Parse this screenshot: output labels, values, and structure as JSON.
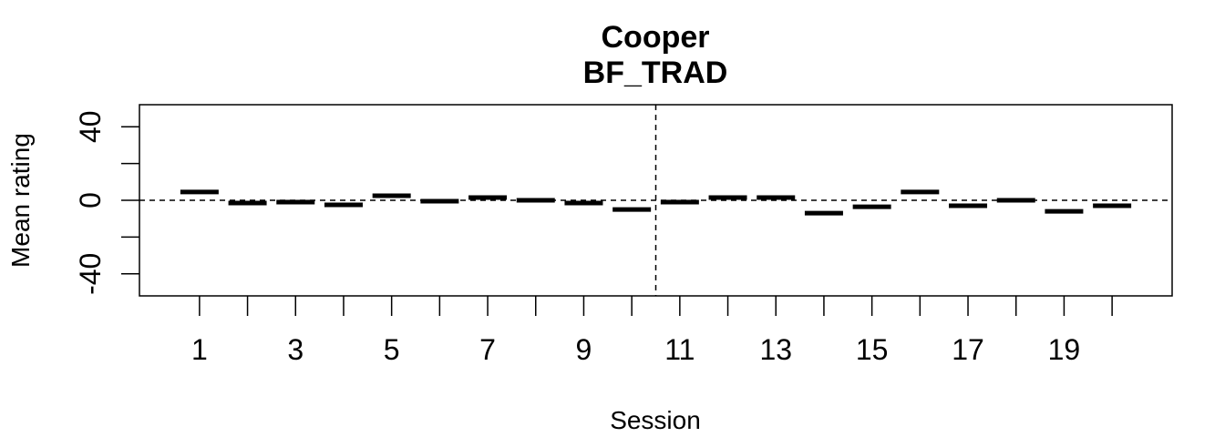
{
  "chart_data": {
    "type": "bar",
    "title": "Cooper",
    "subtitle": "BF_TRAD",
    "xlabel": "Session",
    "ylabel": "Mean rating",
    "x": [
      1,
      2,
      3,
      4,
      5,
      6,
      7,
      8,
      9,
      10,
      11,
      12,
      13,
      14,
      15,
      16,
      17,
      18,
      19,
      20
    ],
    "values": [
      4.5,
      -1.5,
      -1.0,
      -2.5,
      2.5,
      -0.5,
      1.5,
      0.0,
      -1.5,
      -5.0,
      -1.0,
      1.5,
      1.5,
      -7.0,
      -3.5,
      4.5,
      -3.0,
      0.0,
      -6.0,
      -3.0
    ],
    "xtick_labels": [
      "1",
      "3",
      "5",
      "7",
      "9",
      "11",
      "13",
      "15",
      "17",
      "19"
    ],
    "ytick_labels": [
      "-40",
      "0",
      "40"
    ],
    "ylim": [
      -52,
      52
    ],
    "xlim": [
      -0.25,
      21.25
    ],
    "reference_lines": {
      "horizontal_at": 0,
      "vertical_between_sessions": [
        10,
        11
      ]
    },
    "grid": false,
    "legend": "none"
  }
}
